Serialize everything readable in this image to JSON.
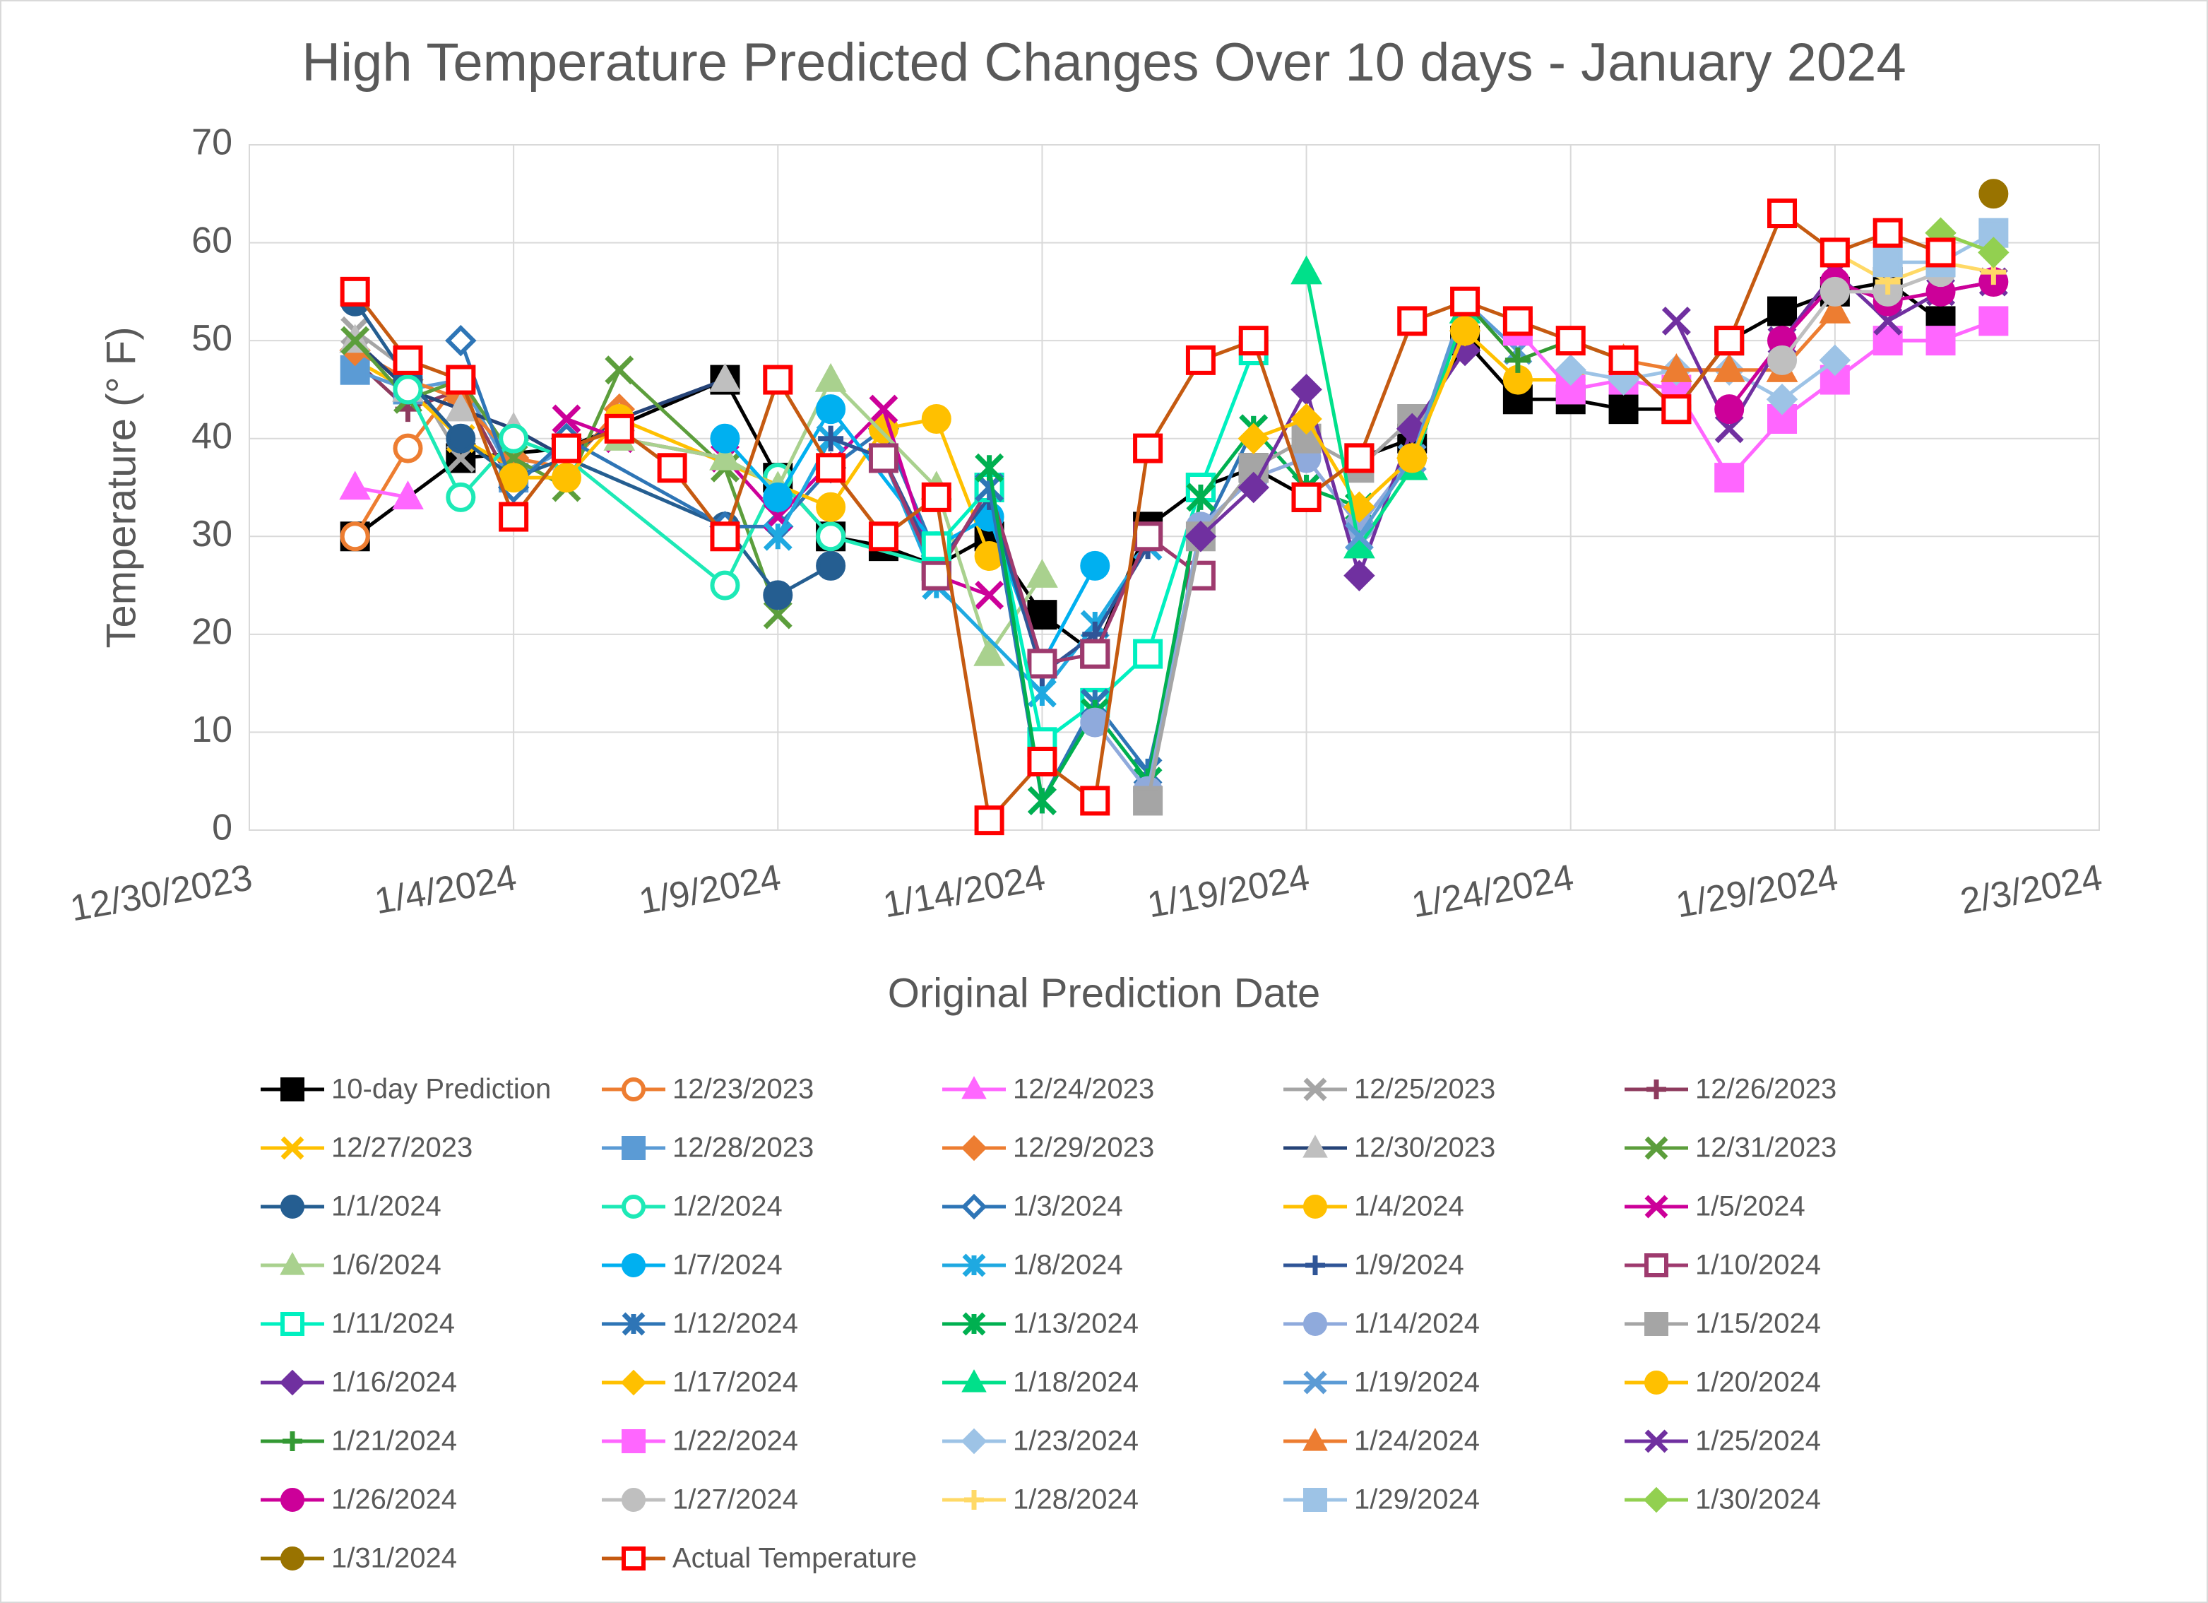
{
  "chart_data": {
    "type": "line",
    "title": "High Temperature Predicted Changes Over 10 days - January 2024",
    "x_label": "Original Prediction Date",
    "y_label": "Temperature (° F)",
    "xlim": [
      "12/30/2023",
      "2/3/2024"
    ],
    "xticks": [
      "12/30/2023",
      "1/4/2024",
      "1/9/2024",
      "1/14/2024",
      "1/19/2024",
      "1/24/2024",
      "1/29/2024",
      "2/3/2024"
    ],
    "ylim": [
      0,
      70
    ],
    "yticks": [
      0,
      10,
      20,
      30,
      40,
      50,
      60,
      70
    ],
    "grid": true,
    "legend": "bottom",
    "series": [
      {
        "name": "10-day Prediction",
        "color": "#000000",
        "marker": "square",
        "x": [
          "1/1/2024",
          "1/3/2024",
          "1/5/2024",
          "1/8/2024",
          "1/9/2024",
          "1/10/2024",
          "1/11/2024",
          "1/12/2024",
          "1/13/2024",
          "1/14/2024",
          "1/15/2024",
          "1/16/2024",
          "1/17/2024",
          "1/18/2024",
          "1/19/2024",
          "1/20/2024",
          "1/21/2024",
          "1/22/2024",
          "1/23/2024",
          "1/24/2024",
          "1/25/2024",
          "1/26/2024",
          "1/27/2024",
          "1/28/2024",
          "1/29/2024",
          "1/30/2024",
          "1/31/2024"
        ],
        "values": [
          30,
          38,
          39,
          46,
          36,
          30,
          29,
          27,
          30,
          22,
          18,
          31,
          35,
          37,
          34,
          38,
          40,
          50,
          44,
          44,
          43,
          43,
          50,
          53,
          55,
          56,
          52
        ]
      },
      {
        "name": "12/23/2023",
        "color": "#ed7d31",
        "marker": "circle-open",
        "x": [
          "1/1/2024",
          "1/2/2024",
          "1/3/2024"
        ],
        "values": [
          30,
          39,
          46
        ]
      },
      {
        "name": "12/24/2023",
        "color": "#ff66ff",
        "marker": "triangle",
        "x": [
          "1/1/2024",
          "1/2/2024"
        ],
        "values": [
          35,
          34
        ]
      },
      {
        "name": "12/25/2023",
        "color": "#a5a5a5",
        "marker": "x",
        "x": [
          "1/1/2024",
          "1/2/2024",
          "1/3/2024"
        ],
        "values": [
          51,
          47,
          38
        ]
      },
      {
        "name": "12/26/2023",
        "color": "#8e3b5e",
        "marker": "plus",
        "x": [
          "1/1/2024",
          "1/2/2024",
          "1/3/2024",
          "1/4/2024"
        ],
        "values": [
          48,
          43,
          45,
          35
        ]
      },
      {
        "name": "12/27/2023",
        "color": "#ffc000",
        "marker": "x",
        "x": [
          "1/1/2024",
          "1/2/2024",
          "1/3/2024",
          "1/4/2024"
        ],
        "values": [
          48,
          45,
          40,
          37
        ]
      },
      {
        "name": "12/28/2023",
        "color": "#5b9bd5",
        "marker": "square",
        "x": [
          "1/1/2024",
          "1/2/2024",
          "1/3/2024",
          "1/4/2024",
          "1/5/2024"
        ],
        "values": [
          47,
          45,
          46,
          36,
          39
        ]
      },
      {
        "name": "12/29/2023",
        "color": "#ed7d31",
        "marker": "diamond",
        "x": [
          "1/1/2024",
          "1/2/2024",
          "1/3/2024",
          "1/4/2024",
          "1/5/2024",
          "1/6/2024"
        ],
        "values": [
          49,
          46,
          44,
          38,
          37,
          43
        ]
      },
      {
        "name": "12/30/2023",
        "color": "#264478",
        "marker": "triangle-grey",
        "x": [
          "1/1/2024",
          "1/2/2024",
          "1/3/2024",
          "1/4/2024",
          "1/5/2024",
          "1/6/2024",
          "1/8/2024"
        ],
        "values": [
          50,
          45,
          43,
          41,
          38,
          42,
          46
        ]
      },
      {
        "name": "12/31/2023",
        "color": "#5c9e3c",
        "marker": "x",
        "x": [
          "1/1/2024",
          "1/2/2024",
          "1/3/2024",
          "1/4/2024",
          "1/5/2024",
          "1/6/2024",
          "1/8/2024",
          "1/9/2024"
        ],
        "values": [
          50,
          44,
          46,
          38,
          35,
          47,
          37,
          22
        ]
      },
      {
        "name": "1/1/2024",
        "color": "#255e91",
        "marker": "circle",
        "x": [
          "1/1/2024",
          "1/2/2024",
          "1/3/2024",
          "1/4/2024",
          "1/5/2024",
          "1/8/2024",
          "1/9/2024",
          "1/10/2024"
        ],
        "values": [
          54,
          46,
          40,
          36,
          38,
          31,
          24,
          27
        ]
      },
      {
        "name": "1/2/2024",
        "color": "#1de9b6",
        "marker": "circle-open",
        "x": [
          "1/2/2024",
          "1/3/2024",
          "1/4/2024",
          "1/5/2024",
          "1/8/2024",
          "1/9/2024",
          "1/10/2024",
          "1/12/2024"
        ],
        "values": [
          45,
          34,
          40,
          38,
          25,
          36,
          30,
          27
        ]
      },
      {
        "name": "1/3/2024",
        "color": "#2e75b6",
        "marker": "diamond-open",
        "x": [
          "1/3/2024",
          "1/4/2024",
          "1/5/2024",
          "1/8/2024",
          "1/9/2024",
          "1/10/2024",
          "1/11/2024",
          "1/12/2024"
        ],
        "values": [
          50,
          35,
          40,
          31,
          31,
          37,
          41,
          28
        ]
      },
      {
        "name": "1/4/2024",
        "color": "#ffc000",
        "marker": "circle",
        "x": [
          "1/4/2024",
          "1/5/2024",
          "1/6/2024",
          "1/10/2024",
          "1/11/2024",
          "1/12/2024",
          "1/13/2024"
        ],
        "values": [
          36,
          36,
          42,
          33,
          41,
          42,
          28
        ]
      },
      {
        "name": "1/5/2024",
        "color": "#cc0099",
        "marker": "x",
        "x": [
          "1/5/2024",
          "1/6/2024",
          "1/8/2024",
          "1/9/2024",
          "1/11/2024",
          "1/12/2024",
          "1/13/2024"
        ],
        "values": [
          42,
          40,
          38,
          32,
          43,
          26,
          24
        ]
      },
      {
        "name": "1/6/2024",
        "color": "#a9d18e",
        "marker": "triangle",
        "x": [
          "1/6/2024",
          "1/8/2024",
          "1/9/2024",
          "1/10/2024",
          "1/12/2024",
          "1/13/2024",
          "1/14/2024"
        ],
        "values": [
          40,
          38,
          35,
          46,
          35,
          18,
          26
        ]
      },
      {
        "name": "1/7/2024",
        "color": "#00b0f0",
        "marker": "circle",
        "x": [
          "1/8/2024",
          "1/9/2024",
          "1/10/2024",
          "1/12/2024",
          "1/13/2024",
          "1/14/2024",
          "1/15/2024"
        ],
        "values": [
          40,
          34,
          43,
          29,
          32,
          17,
          27
        ]
      },
      {
        "name": "1/8/2024",
        "color": "#1fa9e1",
        "marker": "star",
        "x": [
          "1/9/2024",
          "1/10/2024",
          "1/11/2024",
          "1/12/2024",
          "1/14/2024",
          "1/15/2024",
          "1/16/2024"
        ],
        "values": [
          30,
          40,
          38,
          25,
          14,
          21,
          29
        ]
      },
      {
        "name": "1/9/2024",
        "color": "#2f5597",
        "marker": "plus",
        "x": [
          "1/10/2024",
          "1/11/2024",
          "1/12/2024",
          "1/13/2024",
          "1/14/2024",
          "1/15/2024",
          "1/16/2024"
        ],
        "values": [
          40,
          38,
          27,
          34,
          16,
          20,
          29
        ]
      },
      {
        "name": "1/10/2024",
        "color": "#9e3a6e",
        "marker": "square-open",
        "x": [
          "1/11/2024",
          "1/12/2024",
          "1/13/2024",
          "1/14/2024",
          "1/15/2024",
          "1/16/2024",
          "1/17/2024"
        ],
        "values": [
          38,
          26,
          35,
          17,
          18,
          30,
          26
        ]
      },
      {
        "name": "1/11/2024",
        "color": "#00f0c0",
        "marker": "square-open",
        "x": [
          "1/12/2024",
          "1/13/2024",
          "1/14/2024",
          "1/15/2024",
          "1/16/2024",
          "1/17/2024",
          "1/18/2024"
        ],
        "values": [
          29,
          35,
          9,
          13,
          18,
          35,
          49
        ]
      },
      {
        "name": "1/12/2024",
        "color": "#2e75b6",
        "marker": "star",
        "x": [
          "1/13/2024",
          "1/14/2024",
          "1/15/2024",
          "1/16/2024",
          "1/17/2024",
          "1/18/2024",
          "1/19/2024"
        ],
        "values": [
          35,
          3,
          13,
          6,
          30,
          41,
          35
        ]
      },
      {
        "name": "1/13/2024",
        "color": "#00b050",
        "marker": "star",
        "x": [
          "1/13/2024",
          "1/14/2024",
          "1/15/2024",
          "1/16/2024",
          "1/17/2024",
          "1/18/2024",
          "1/19/2024",
          "1/20/2024"
        ],
        "values": [
          37,
          3,
          12,
          5,
          34,
          41,
          35,
          33
        ]
      },
      {
        "name": "1/14/2024",
        "color": "#8faadc",
        "marker": "circle",
        "x": [
          "1/15/2024",
          "1/16/2024",
          "1/17/2024",
          "1/18/2024",
          "1/19/2024",
          "1/20/2024",
          "1/21/2024"
        ],
        "values": [
          11,
          4,
          31,
          36,
          38,
          31,
          38
        ]
      },
      {
        "name": "1/15/2024",
        "color": "#a5a5a5",
        "marker": "square",
        "x": [
          "1/16/2024",
          "1/17/2024",
          "1/18/2024",
          "1/19/2024",
          "1/20/2024",
          "1/21/2024"
        ],
        "values": [
          3,
          30,
          37,
          40,
          37,
          42
        ]
      },
      {
        "name": "1/16/2024",
        "color": "#7030a0",
        "marker": "diamond",
        "x": [
          "1/17/2024",
          "1/18/2024",
          "1/19/2024",
          "1/20/2024",
          "1/21/2024",
          "1/22/2024"
        ],
        "values": [
          30,
          35,
          45,
          26,
          41,
          49
        ]
      },
      {
        "name": "1/17/2024",
        "color": "#ffc000",
        "marker": "diamond",
        "x": [
          "1/18/2024",
          "1/19/2024",
          "1/20/2024",
          "1/21/2024",
          "1/22/2024"
        ],
        "values": [
          40,
          42,
          33,
          38,
          51
        ]
      },
      {
        "name": "1/18/2024",
        "color": "#00e08a",
        "marker": "triangle",
        "x": [
          "1/19/2024",
          "1/20/2024",
          "1/21/2024",
          "1/22/2024"
        ],
        "values": [
          57,
          29,
          37,
          53
        ]
      },
      {
        "name": "1/19/2024",
        "color": "#5b9bd5",
        "marker": "x",
        "x": [
          "1/20/2024",
          "1/21/2024",
          "1/22/2024",
          "1/23/2024"
        ],
        "values": [
          30,
          38,
          54,
          49
        ]
      },
      {
        "name": "1/20/2024",
        "color": "#ffc000",
        "marker": "circle",
        "x": [
          "1/21/2024",
          "1/22/2024",
          "1/23/2024",
          "1/24/2024"
        ],
        "values": [
          38,
          51,
          46,
          46
        ]
      },
      {
        "name": "1/21/2024",
        "color": "#339933",
        "marker": "plus",
        "x": [
          "1/22/2024",
          "1/23/2024",
          "1/24/2024",
          "1/25/2024"
        ],
        "values": [
          54,
          48,
          50,
          48
        ]
      },
      {
        "name": "1/22/2024",
        "color": "#ff66ff",
        "marker": "square",
        "x": [
          "1/23/2024",
          "1/24/2024",
          "1/25/2024",
          "1/26/2024",
          "1/27/2024",
          "1/28/2024",
          "1/29/2024",
          "1/30/2024",
          "1/31/2024",
          "2/1/2024"
        ],
        "values": [
          51,
          45,
          46,
          45,
          36,
          42,
          46,
          50,
          50,
          52
        ]
      },
      {
        "name": "1/23/2024",
        "color": "#9dc3e6",
        "marker": "diamond",
        "x": [
          "1/24/2024",
          "1/25/2024",
          "1/26/2024",
          "1/27/2024",
          "1/28/2024",
          "1/29/2024"
        ],
        "values": [
          47,
          46,
          47,
          47,
          44,
          48
        ]
      },
      {
        "name": "1/24/2024",
        "color": "#ed7d31",
        "marker": "triangle",
        "x": [
          "1/25/2024",
          "1/26/2024",
          "1/27/2024",
          "1/28/2024",
          "1/29/2024"
        ],
        "values": [
          48,
          47,
          47,
          47,
          53
        ]
      },
      {
        "name": "1/25/2024",
        "color": "#7030a0",
        "marker": "x",
        "x": [
          "1/26/2024",
          "1/27/2024",
          "1/28/2024",
          "1/29/2024",
          "1/30/2024",
          "1/31/2024",
          "2/1/2024"
        ],
        "values": [
          52,
          41,
          50,
          57,
          52,
          55,
          56
        ]
      },
      {
        "name": "1/26/2024",
        "color": "#cc0099",
        "marker": "circle",
        "x": [
          "1/27/2024",
          "1/28/2024",
          "1/29/2024",
          "1/30/2024",
          "1/31/2024",
          "2/1/2024"
        ],
        "values": [
          43,
          50,
          56,
          54,
          55,
          56
        ]
      },
      {
        "name": "1/27/2024",
        "color": "#bfbfbf",
        "marker": "circle",
        "x": [
          "1/28/2024",
          "1/29/2024",
          "1/30/2024",
          "1/31/2024"
        ],
        "values": [
          48,
          55,
          55,
          57
        ]
      },
      {
        "name": "1/28/2024",
        "color": "#ffd966",
        "marker": "plus",
        "x": [
          "1/29/2024",
          "1/30/2024",
          "1/31/2024",
          "2/1/2024"
        ],
        "values": [
          59,
          56,
          58,
          57
        ]
      },
      {
        "name": "1/29/2024",
        "color": "#9dc3e6",
        "marker": "square",
        "x": [
          "1/30/2024",
          "1/31/2024",
          "2/1/2024"
        ],
        "values": [
          58,
          58,
          61
        ]
      },
      {
        "name": "1/30/2024",
        "color": "#92d050",
        "marker": "diamond",
        "x": [
          "1/31/2024",
          "2/1/2024"
        ],
        "values": [
          61,
          59
        ]
      },
      {
        "name": "1/31/2024",
        "color": "#997300",
        "marker": "circle",
        "x": [
          "2/1/2024"
        ],
        "values": [
          65
        ]
      },
      {
        "name": "Actual Temperature",
        "color": "#ff0000",
        "line_color": "#c55a11",
        "marker": "square-open",
        "x": [
          "1/1/2024",
          "1/2/2024",
          "1/3/2024",
          "1/4/2024",
          "1/5/2024",
          "1/6/2024",
          "1/7/2024",
          "1/8/2024",
          "1/9/2024",
          "1/10/2024",
          "1/11/2024",
          "1/12/2024",
          "1/13/2024",
          "1/14/2024",
          "1/15/2024",
          "1/16/2024",
          "1/17/2024",
          "1/18/2024",
          "1/19/2024",
          "1/20/2024",
          "1/21/2024",
          "1/22/2024",
          "1/23/2024",
          "1/24/2024",
          "1/25/2024",
          "1/26/2024",
          "1/27/2024",
          "1/28/2024",
          "1/29/2024",
          "1/30/2024",
          "1/31/2024"
        ],
        "values": [
          55,
          48,
          46,
          32,
          39,
          41,
          37,
          30,
          46,
          37,
          30,
          34,
          1,
          7,
          3,
          39,
          48,
          50,
          34,
          38,
          52,
          54,
          52,
          50,
          48,
          43,
          50,
          63,
          59,
          61,
          59
        ]
      }
    ]
  }
}
